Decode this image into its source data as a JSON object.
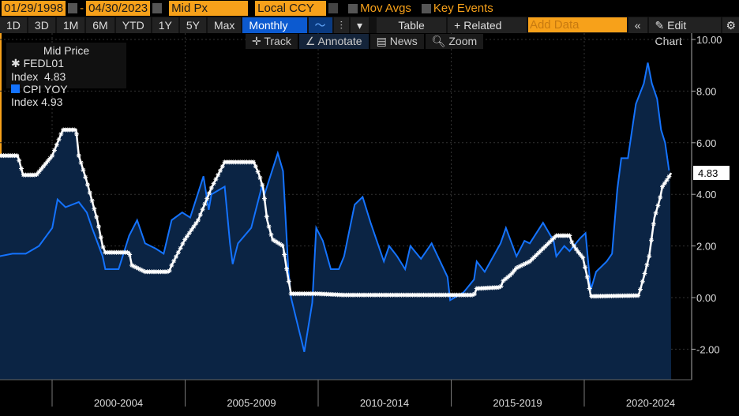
{
  "toolbar": {
    "start_date": "01/29/1998",
    "dash": "-",
    "end_date": "04/30/2023",
    "field": "Mid Px",
    "currency": "Local CCY",
    "mov_avgs": "Mov Avgs",
    "key_events": "Key Events",
    "ranges": [
      "1D",
      "3D",
      "1M",
      "6M",
      "YTD",
      "1Y",
      "5Y",
      "Max"
    ],
    "period": "Monthly ▼",
    "table": "Table",
    "related": "+ Related Dat",
    "add_data_placeholder": "Add Data",
    "collapse": "«",
    "edit_chart": "✎ Edit Chart",
    "settings": "⚙"
  },
  "tools": {
    "track": "✛ Track",
    "annotate": "∠ Annotate",
    "news": "▤ News",
    "zoom": "🔍︎ Zoom"
  },
  "colors": {
    "fed": "#ffffff",
    "cpi": "#1473ff",
    "fill": "#0b2444",
    "accent": "#f7a11a"
  },
  "chart_data": {
    "type": "line",
    "legend_title": "Mid Price",
    "legend_position": "top-left",
    "series": [
      {
        "name": "FEDL01 Index",
        "last": "4.83",
        "points": [
          [
            1998.0,
            5.5
          ],
          [
            1998.7,
            5.5
          ],
          [
            1998.9,
            4.75
          ],
          [
            1999.4,
            4.75
          ],
          [
            1999.6,
            5.0
          ],
          [
            2000.0,
            5.5
          ],
          [
            2000.4,
            6.5
          ],
          [
            2000.9,
            6.5
          ],
          [
            2001.0,
            5.5
          ],
          [
            2001.3,
            4.5
          ],
          [
            2001.5,
            3.75
          ],
          [
            2001.7,
            3.0
          ],
          [
            2001.9,
            2.0
          ],
          [
            2002.0,
            1.75
          ],
          [
            2002.9,
            1.75
          ],
          [
            2003.0,
            1.25
          ],
          [
            2003.5,
            1.0
          ],
          [
            2004.4,
            1.0
          ],
          [
            2004.5,
            1.25
          ],
          [
            2005.0,
            2.25
          ],
          [
            2005.5,
            3.0
          ],
          [
            2006.0,
            4.25
          ],
          [
            2006.5,
            5.25
          ],
          [
            2007.6,
            5.25
          ],
          [
            2007.8,
            4.75
          ],
          [
            2007.95,
            4.25
          ],
          [
            2008.1,
            3.0
          ],
          [
            2008.3,
            2.25
          ],
          [
            2008.7,
            2.0
          ],
          [
            2008.85,
            1.0
          ],
          [
            2009.0,
            0.15
          ],
          [
            2010.0,
            0.15
          ],
          [
            2011.0,
            0.1
          ],
          [
            2015.9,
            0.1
          ],
          [
            2016.0,
            0.35
          ],
          [
            2016.9,
            0.4
          ],
          [
            2017.0,
            0.65
          ],
          [
            2017.3,
            0.9
          ],
          [
            2017.5,
            1.15
          ],
          [
            2018.0,
            1.4
          ],
          [
            2018.3,
            1.7
          ],
          [
            2018.5,
            1.9
          ],
          [
            2018.8,
            2.2
          ],
          [
            2019.0,
            2.4
          ],
          [
            2019.5,
            2.4
          ],
          [
            2019.6,
            2.1
          ],
          [
            2019.8,
            1.8
          ],
          [
            2020.0,
            1.55
          ],
          [
            2020.2,
            0.65
          ],
          [
            2020.3,
            0.05
          ],
          [
            2022.1,
            0.08
          ],
          [
            2022.3,
            0.8
          ],
          [
            2022.5,
            1.6
          ],
          [
            2022.7,
            3.1
          ],
          [
            2022.9,
            3.8
          ],
          [
            2023.0,
            4.3
          ],
          [
            2023.2,
            4.6
          ],
          [
            2023.33,
            4.83
          ]
        ]
      },
      {
        "name": "CPI YOY Index",
        "last": "4.93",
        "points": [
          [
            1998.0,
            1.6
          ],
          [
            1998.5,
            1.7
          ],
          [
            1999.0,
            1.7
          ],
          [
            1999.5,
            2.0
          ],
          [
            2000.0,
            2.7
          ],
          [
            2000.2,
            3.8
          ],
          [
            2000.5,
            3.5
          ],
          [
            2001.0,
            3.7
          ],
          [
            2001.3,
            3.3
          ],
          [
            2001.5,
            2.7
          ],
          [
            2001.9,
            1.6
          ],
          [
            2002.0,
            1.1
          ],
          [
            2002.5,
            1.1
          ],
          [
            2002.9,
            2.4
          ],
          [
            2003.2,
            3.0
          ],
          [
            2003.5,
            2.1
          ],
          [
            2003.9,
            1.9
          ],
          [
            2004.2,
            1.7
          ],
          [
            2004.5,
            3.0
          ],
          [
            2004.9,
            3.3
          ],
          [
            2005.2,
            3.1
          ],
          [
            2005.7,
            4.7
          ],
          [
            2005.9,
            3.4
          ],
          [
            2006.0,
            4.0
          ],
          [
            2006.5,
            4.3
          ],
          [
            2006.7,
            2.1
          ],
          [
            2006.8,
            1.3
          ],
          [
            2007.0,
            2.1
          ],
          [
            2007.5,
            2.7
          ],
          [
            2007.9,
            4.3
          ],
          [
            2008.0,
            4.0
          ],
          [
            2008.5,
            5.6
          ],
          [
            2008.7,
            4.9
          ],
          [
            2008.9,
            1.1
          ],
          [
            2009.0,
            0.0
          ],
          [
            2009.5,
            -2.1
          ],
          [
            2009.8,
            -0.2
          ],
          [
            2009.95,
            2.7
          ],
          [
            2010.2,
            2.2
          ],
          [
            2010.5,
            1.1
          ],
          [
            2010.8,
            1.1
          ],
          [
            2011.0,
            1.6
          ],
          [
            2011.4,
            3.6
          ],
          [
            2011.7,
            3.9
          ],
          [
            2012.0,
            2.9
          ],
          [
            2012.5,
            1.4
          ],
          [
            2012.7,
            2.0
          ],
          [
            2013.0,
            1.6
          ],
          [
            2013.3,
            1.1
          ],
          [
            2013.5,
            2.0
          ],
          [
            2013.9,
            1.5
          ],
          [
            2014.3,
            2.1
          ],
          [
            2014.9,
            0.8
          ],
          [
            2015.0,
            -0.1
          ],
          [
            2015.5,
            0.2
          ],
          [
            2015.9,
            0.7
          ],
          [
            2016.0,
            1.4
          ],
          [
            2016.3,
            1.0
          ],
          [
            2016.9,
            2.1
          ],
          [
            2017.1,
            2.7
          ],
          [
            2017.5,
            1.6
          ],
          [
            2017.8,
            2.2
          ],
          [
            2018.0,
            2.1
          ],
          [
            2018.5,
            2.9
          ],
          [
            2018.9,
            2.2
          ],
          [
            2019.0,
            1.6
          ],
          [
            2019.3,
            2.0
          ],
          [
            2019.5,
            1.8
          ],
          [
            2019.9,
            2.3
          ],
          [
            2020.1,
            2.5
          ],
          [
            2020.3,
            0.3
          ],
          [
            2020.5,
            1.0
          ],
          [
            2020.9,
            1.4
          ],
          [
            2021.1,
            1.7
          ],
          [
            2021.3,
            4.2
          ],
          [
            2021.45,
            5.4
          ],
          [
            2021.7,
            5.4
          ],
          [
            2021.9,
            6.8
          ],
          [
            2022.0,
            7.5
          ],
          [
            2022.3,
            8.3
          ],
          [
            2022.45,
            9.1
          ],
          [
            2022.6,
            8.3
          ],
          [
            2022.8,
            7.7
          ],
          [
            2022.95,
            6.5
          ],
          [
            2023.1,
            6.0
          ],
          [
            2023.25,
            4.93
          ]
        ]
      }
    ],
    "y_ticks": [
      "10.00",
      "8.00",
      "6.00",
      "4.00",
      "2.00",
      "0.00",
      "-2.00"
    ],
    "y_tick_values": [
      10,
      8,
      6,
      4,
      2,
      0,
      -2
    ],
    "ylim": [
      -3.2,
      10.3
    ],
    "xlim": [
      1998.0,
      2024.0
    ],
    "x_categories": [
      "2000-2004",
      "2005-2009",
      "2010-2014",
      "2015-2019",
      "2020-2024"
    ],
    "last_label": "4.83"
  }
}
